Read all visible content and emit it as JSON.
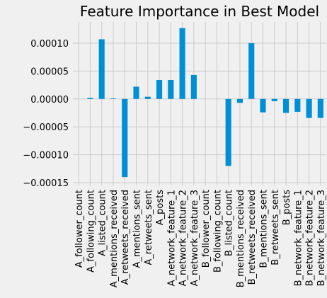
{
  "chart_data": {
    "type": "bar",
    "title": "Feature Importance in Best Model",
    "xlabel": "",
    "ylabel": "",
    "ylim": [
      -0.000155,
      0.000138
    ],
    "grid": true,
    "bar_color": "#008fd5",
    "background_color": "#f0f0f0",
    "grid_color": "#cbcbcb",
    "yticks": [
      -0.00015,
      -0.0001,
      -5e-05,
      0.0,
      5e-05,
      0.0001
    ],
    "ytick_labels": [
      "−0.00015",
      "−0.00010",
      "−0.00005",
      "0.00000",
      "0.00005",
      "0.00010"
    ],
    "categories": [
      "A_follower_count",
      "A_following_count",
      "A_listed_count",
      "A_mentions_received",
      "A_retweets_received",
      "A_mentions_sent",
      "A_retweets_sent",
      "A_posts",
      "A_network_feature_1",
      "A_network_feature_2",
      "A_network_feature_3",
      "B_follower_count",
      "B_following_count",
      "B_listed_count",
      "B_mentions_received",
      "B_retweets_received",
      "B_mentions_sent",
      "B_retweets_sent",
      "B_posts",
      "B_network_feature_1",
      "B_network_feature_2",
      "B_network_feature_3"
    ],
    "values": [
      0.0,
      2e-06,
      0.000107,
      1e-06,
      -0.00014,
      2.2e-05,
      4e-06,
      3.4e-05,
      3.4e-05,
      0.000127,
      4.3e-05,
      0.0,
      0.0,
      -0.00012,
      -7e-06,
      0.0001,
      -2.4e-05,
      -4e-06,
      -2.5e-05,
      -2.3e-05,
      -3.4e-05,
      -3.4e-05
    ]
  }
}
